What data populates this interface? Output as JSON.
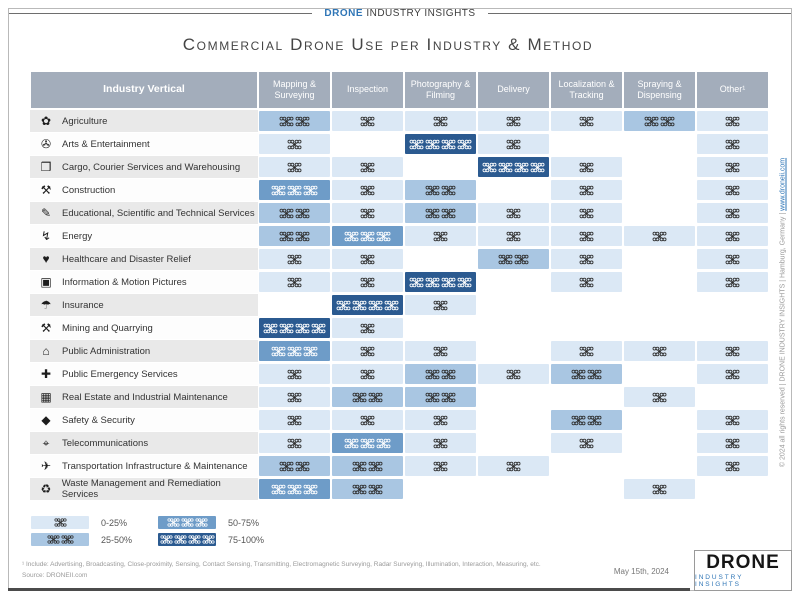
{
  "brand": {
    "blue": "DRONE",
    "rest": "INDUSTRY INSIGHTS"
  },
  "title": "Commercial Drone Use per Industry & Method",
  "table": {
    "corner": "Industry Vertical"
  },
  "chart_data": {
    "type": "heatmap",
    "title": "Commercial Drone Use per Industry & Method",
    "columns": [
      "Mapping & Surveying",
      "Inspection",
      "Photography & Filming",
      "Delivery",
      "Localization & Tracking",
      "Spraying & Dispensing",
      "Other¹"
    ],
    "legend": [
      {
        "level": 1,
        "range": "0-25%"
      },
      {
        "level": 2,
        "range": "25-50%"
      },
      {
        "level": 3,
        "range": "50-75%"
      },
      {
        "level": 4,
        "range": "75-100%"
      }
    ],
    "level_colors": {
      "1": {
        "bg": "#dbe8f5",
        "drone": "#2f2f2f"
      },
      "2": {
        "bg": "#a9c6e2",
        "drone": "#2f2f2f"
      },
      "3": {
        "bg": "#6e9cc8",
        "drone": "#ffffff"
      },
      "4": {
        "bg": "#2b5a90",
        "drone": "#ffffff"
      }
    },
    "rows": [
      {
        "industry": "Agriculture",
        "icon": "agriculture-icon",
        "glyph": "✿",
        "levels": [
          2,
          1,
          1,
          1,
          1,
          2,
          1
        ]
      },
      {
        "industry": "Arts & Entertainment",
        "icon": "arts-entertainment-icon",
        "glyph": "✇",
        "levels": [
          1,
          0,
          4,
          1,
          0,
          0,
          1
        ]
      },
      {
        "industry": "Cargo, Courier Services and Warehousing",
        "icon": "cargo-icon",
        "glyph": "❒",
        "levels": [
          1,
          1,
          0,
          4,
          1,
          0,
          1
        ]
      },
      {
        "industry": "Construction",
        "icon": "construction-icon",
        "glyph": "⚒",
        "levels": [
          3,
          1,
          2,
          0,
          1,
          0,
          1
        ]
      },
      {
        "industry": "Educational, Scientific and Technical Services",
        "icon": "education-icon",
        "glyph": "✎",
        "levels": [
          2,
          1,
          2,
          1,
          1,
          0,
          1
        ]
      },
      {
        "industry": "Energy",
        "icon": "energy-icon",
        "glyph": "↯",
        "levels": [
          2,
          3,
          1,
          1,
          1,
          1,
          1
        ]
      },
      {
        "industry": "Healthcare and Disaster Relief",
        "icon": "healthcare-icon",
        "glyph": "♥",
        "levels": [
          1,
          1,
          0,
          2,
          1,
          0,
          1
        ]
      },
      {
        "industry": "Information & Motion Pictures",
        "icon": "motion-pictures-icon",
        "glyph": "▣",
        "levels": [
          1,
          1,
          4,
          0,
          1,
          0,
          1
        ]
      },
      {
        "industry": "Insurance",
        "icon": "insurance-icon",
        "glyph": "☂",
        "levels": [
          0,
          4,
          1,
          0,
          0,
          0,
          0
        ]
      },
      {
        "industry": "Mining and Quarrying",
        "icon": "mining-icon",
        "glyph": "⚒",
        "levels": [
          4,
          1,
          0,
          0,
          0,
          0,
          0
        ]
      },
      {
        "industry": "Public Administration",
        "icon": "public-administration-icon",
        "glyph": "⌂",
        "levels": [
          3,
          1,
          1,
          0,
          1,
          1,
          1
        ]
      },
      {
        "industry": "Public Emergency Services",
        "icon": "emergency-services-icon",
        "glyph": "✚",
        "levels": [
          1,
          1,
          2,
          1,
          2,
          0,
          1
        ]
      },
      {
        "industry": "Real Estate and Industrial Maintenance",
        "icon": "real-estate-icon",
        "glyph": "▦",
        "levels": [
          1,
          2,
          2,
          0,
          0,
          1,
          0
        ]
      },
      {
        "industry": "Safety & Security",
        "icon": "safety-security-icon",
        "glyph": "◆",
        "levels": [
          1,
          1,
          1,
          0,
          2,
          0,
          1
        ]
      },
      {
        "industry": "Telecommunications",
        "icon": "telecom-icon",
        "glyph": "⌖",
        "levels": [
          1,
          3,
          1,
          0,
          1,
          0,
          1
        ]
      },
      {
        "industry": "Transportation Infrastructure & Maintenance",
        "icon": "transportation-icon",
        "glyph": "✈",
        "levels": [
          2,
          2,
          1,
          1,
          0,
          0,
          1
        ]
      },
      {
        "industry": "Waste Management and Remediation Services",
        "icon": "waste-icon",
        "glyph": "♻",
        "levels": [
          3,
          2,
          0,
          0,
          0,
          1,
          0
        ]
      }
    ]
  },
  "footer": {
    "note": "¹ Include: Advertising, Broadcasting, Close-proximity, Sensing, Contact Sensing, Transmitting, Electromagnetic Surveying, Radar Surveying, Illumination, Interaction, Measuring, etc.",
    "source": "Source: DRONEII.com",
    "date": "May 15th, 2024"
  },
  "side_text": {
    "prefix": "© 2024 all rights reserved   |   DRONE INDUSTRY INSIGHTS   |   Hamburg, Germany   |   ",
    "link": "www.droneii.com"
  },
  "logo": {
    "top": "DRONE",
    "bottom": "INDUSTRY INSIGHTS"
  }
}
